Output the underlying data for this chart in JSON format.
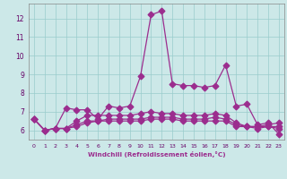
{
  "xlabel": "Windchill (Refroidissement éolien,°C)",
  "x": [
    0,
    1,
    2,
    3,
    4,
    5,
    6,
    7,
    8,
    9,
    10,
    11,
    12,
    13,
    14,
    15,
    16,
    17,
    18,
    19,
    20,
    21,
    22,
    23
  ],
  "line1": [
    6.6,
    6.0,
    6.1,
    7.2,
    7.1,
    7.1,
    6.6,
    7.3,
    7.2,
    7.3,
    8.9,
    12.2,
    12.4,
    8.5,
    8.4,
    8.4,
    8.3,
    8.4,
    9.5,
    7.3,
    7.4,
    6.3,
    6.4,
    5.8
  ],
  "line2": [
    6.6,
    6.0,
    6.1,
    6.1,
    6.5,
    6.8,
    6.8,
    6.8,
    6.8,
    6.8,
    6.9,
    7.0,
    6.9,
    6.9,
    6.8,
    6.8,
    6.8,
    6.9,
    6.8,
    6.4,
    6.2,
    6.2,
    6.3,
    6.4
  ],
  "line3": [
    6.6,
    6.0,
    6.1,
    6.1,
    6.3,
    6.5,
    6.5,
    6.6,
    6.6,
    6.6,
    6.6,
    6.7,
    6.7,
    6.7,
    6.6,
    6.6,
    6.6,
    6.7,
    6.6,
    6.3,
    6.2,
    6.2,
    6.2,
    6.2
  ],
  "line4": [
    6.6,
    6.0,
    6.1,
    6.1,
    6.2,
    6.4,
    6.5,
    6.5,
    6.5,
    6.5,
    6.5,
    6.6,
    6.6,
    6.6,
    6.5,
    6.5,
    6.5,
    6.5,
    6.5,
    6.2,
    6.2,
    6.1,
    6.2,
    6.1
  ],
  "line_color": "#9B2D8E",
  "bg_color": "#CCE8E8",
  "grid_color": "#99CCCC",
  "ylim": [
    5.5,
    12.8
  ],
  "yticks": [
    6,
    7,
    8,
    9,
    10,
    11,
    12
  ],
  "xlim": [
    -0.5,
    23.5
  ]
}
